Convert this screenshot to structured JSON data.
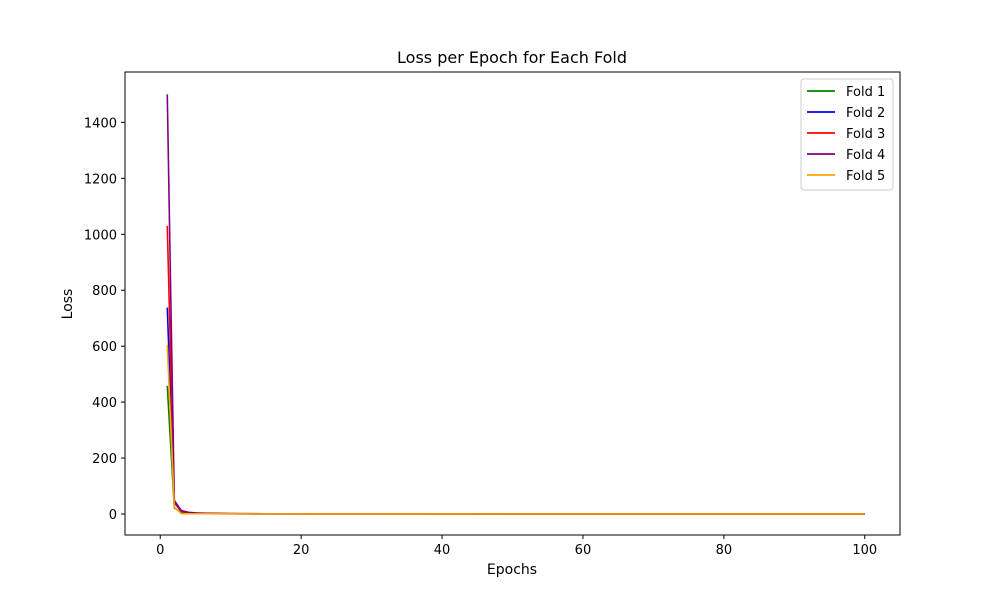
{
  "chart_data": {
    "type": "line",
    "title": "Loss per Epoch for Each Fold",
    "xlabel": "Epochs",
    "ylabel": "Loss",
    "xlim": [
      -5,
      105
    ],
    "ylim": [
      -75,
      1580
    ],
    "xticks": [
      0,
      20,
      40,
      60,
      80,
      100
    ],
    "yticks": [
      0,
      200,
      400,
      600,
      800,
      1000,
      1200,
      1400
    ],
    "grid": false,
    "legend_position": "top-right",
    "series": [
      {
        "name": "Fold 1",
        "color": "#008000",
        "x": [
          1,
          2,
          3,
          4,
          5,
          6,
          8,
          10,
          15,
          20,
          30,
          40,
          50,
          60,
          70,
          80,
          90,
          100
        ],
        "y": [
          458,
          22,
          6,
          3,
          2,
          1.5,
          1,
          0.8,
          0.6,
          0.5,
          0.4,
          0.3,
          0.3,
          0.2,
          0.2,
          0.2,
          0.2,
          0.2
        ]
      },
      {
        "name": "Fold 2",
        "color": "#0000ff",
        "x": [
          1,
          2,
          3,
          4,
          5,
          6,
          8,
          10,
          15,
          20,
          30,
          40,
          50,
          60,
          70,
          80,
          90,
          100
        ],
        "y": [
          738,
          48,
          12,
          5,
          3,
          2,
          1.5,
          1,
          0.8,
          0.6,
          0.5,
          0.4,
          0.3,
          0.3,
          0.3,
          0.2,
          0.2,
          0.2
        ]
      },
      {
        "name": "Fold 3",
        "color": "#ff0000",
        "x": [
          1,
          2,
          3,
          4,
          5,
          6,
          8,
          10,
          15,
          20,
          30,
          40,
          50,
          60,
          70,
          80,
          90,
          100
        ],
        "y": [
          1030,
          40,
          10,
          4,
          3,
          2,
          1.5,
          1,
          0.8,
          0.6,
          0.5,
          0.4,
          0.3,
          0.3,
          0.3,
          0.2,
          0.2,
          0.2
        ]
      },
      {
        "name": "Fold 4",
        "color": "#800080",
        "x": [
          1,
          2,
          3,
          4,
          5,
          6,
          8,
          10,
          15,
          20,
          30,
          40,
          50,
          60,
          70,
          80,
          90,
          100
        ],
        "y": [
          1500,
          45,
          12,
          6,
          4,
          3,
          2,
          1.5,
          1,
          0.8,
          0.6,
          0.5,
          0.4,
          0.3,
          0.3,
          0.3,
          0.2,
          0.2
        ]
      },
      {
        "name": "Fold 5",
        "color": "#ffa500",
        "x": [
          1,
          2,
          3,
          4,
          5,
          6,
          8,
          10,
          15,
          20,
          30,
          40,
          50,
          60,
          70,
          80,
          90,
          100
        ],
        "y": [
          605,
          25,
          1,
          1,
          1,
          1,
          0.8,
          0.6,
          0.5,
          0.4,
          0.3,
          0.3,
          0.2,
          0.2,
          0.2,
          0.2,
          0.2,
          0.2
        ]
      }
    ]
  }
}
